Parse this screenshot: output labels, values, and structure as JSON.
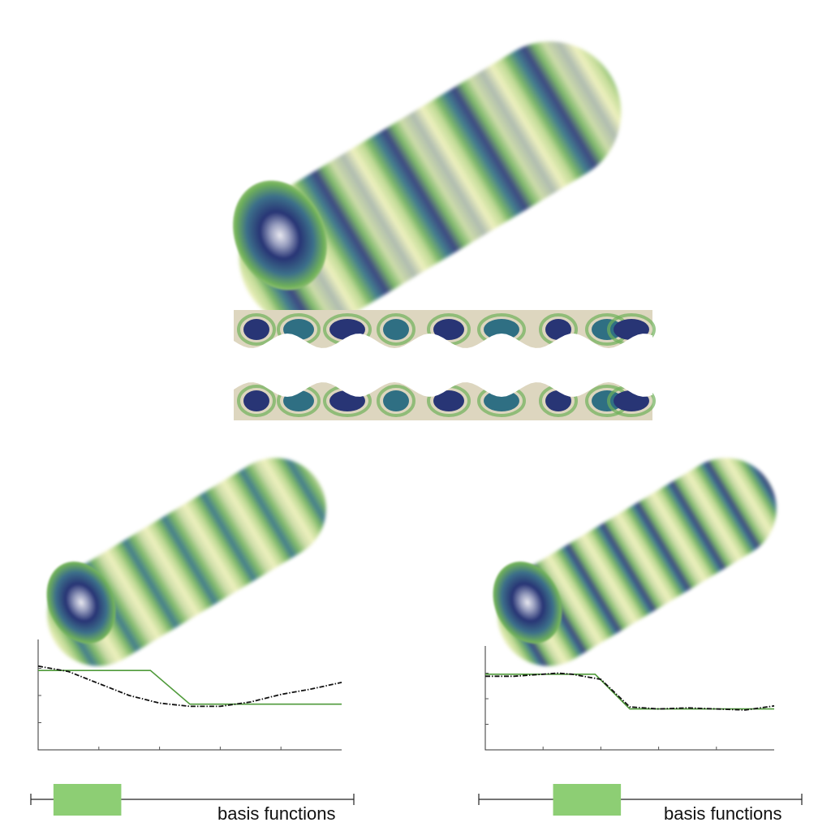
{
  "colors": {
    "dark_blue": "#283575",
    "teal": "#2f6f83",
    "green": "#6fb05a",
    "light_yellow": "#edf0b8",
    "beige": "#ddd6bf",
    "green_line": "#4f9a3a",
    "black_line": "#111111",
    "box_green": "#8dce74"
  },
  "panels": {
    "bottom_left": {
      "label": "basis functions"
    },
    "bottom_right": {
      "label": "basis functions"
    }
  },
  "chart_data": [
    {
      "type": "line",
      "title": "",
      "xlabel": "",
      "ylabel": "",
      "x_ticks": 5,
      "y_ticks": 4,
      "xlim": [
        0,
        1
      ],
      "ylim": [
        0,
        1
      ],
      "series": [
        {
          "style": "solid-green",
          "x": [
            0,
            0.37,
            0.5,
            1.0
          ],
          "y": [
            0.73,
            0.73,
            0.42,
            0.42
          ]
        },
        {
          "style": "dashdot-black",
          "x": [
            0,
            0.1,
            0.2,
            0.3,
            0.4,
            0.5,
            0.6,
            0.7,
            0.8,
            0.9,
            1.0
          ],
          "y": [
            0.77,
            0.72,
            0.61,
            0.5,
            0.43,
            0.4,
            0.4,
            0.44,
            0.51,
            0.56,
            0.62
          ]
        }
      ],
      "basis_range": [
        0.07,
        0.28
      ]
    },
    {
      "type": "line",
      "title": "",
      "xlabel": "",
      "ylabel": "",
      "x_ticks": 5,
      "y_ticks": 4,
      "xlim": [
        0,
        1
      ],
      "ylim": [
        0,
        1
      ],
      "series": [
        {
          "style": "solid-green",
          "x": [
            0,
            0.38,
            0.5,
            1.0
          ],
          "y": [
            0.74,
            0.74,
            0.4,
            0.4
          ]
        },
        {
          "style": "dashdot-black",
          "x": [
            0,
            0.1,
            0.2,
            0.25,
            0.3,
            0.4,
            0.5,
            0.6,
            0.7,
            0.8,
            0.9,
            1.0
          ],
          "y": [
            0.72,
            0.72,
            0.74,
            0.75,
            0.74,
            0.69,
            0.42,
            0.4,
            0.41,
            0.4,
            0.39,
            0.43
          ]
        }
      ],
      "basis_range": [
        0.23,
        0.44
      ]
    }
  ]
}
